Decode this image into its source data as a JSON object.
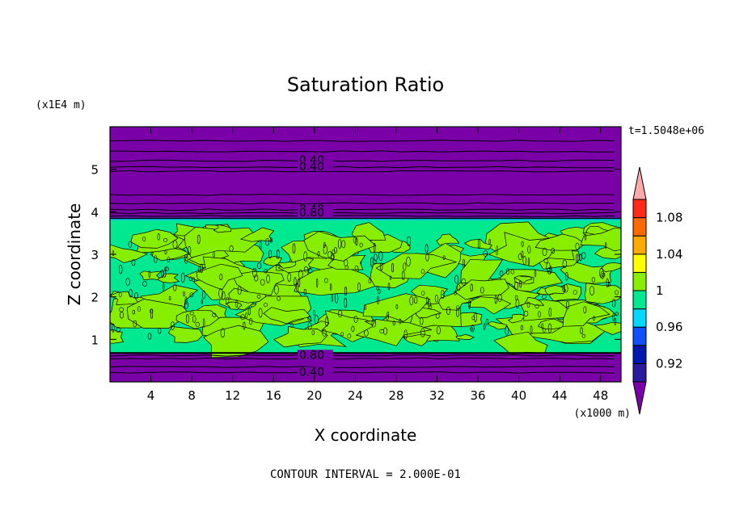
{
  "chart_data": {
    "type": "heatmap",
    "title": "Saturation Ratio",
    "xlabel": "X coordinate",
    "ylabel": "Z coordinate",
    "x_unit": "(x1000 m)",
    "y_unit": "(x1E4 m)",
    "time_label": "t=1.5048e+06",
    "footer": "CONTOUR INTERVAL = 2.000E-01",
    "xlim": [
      0,
      50
    ],
    "ylim": [
      0,
      6
    ],
    "x_ticks": [
      "4",
      "8",
      "12",
      "16",
      "20",
      "24",
      "28",
      "32",
      "36",
      "40",
      "44",
      "48"
    ],
    "x_tick_values": [
      4,
      8,
      12,
      16,
      20,
      24,
      28,
      32,
      36,
      40,
      44,
      48
    ],
    "y_ticks": [
      "1",
      "2",
      "3",
      "4",
      "5"
    ],
    "y_tick_values": [
      1,
      2,
      3,
      4,
      5
    ],
    "colorbar": {
      "levels": [
        "0.92",
        "0.96",
        "1",
        "1.04",
        "1.08"
      ],
      "colors": [
        "#7a00a8",
        "#2a1aa0",
        "#0018b0",
        "#1050ff",
        "#00d8ff",
        "#00e890",
        "#88ee00",
        "#ffff00",
        "#ffaa00",
        "#ff6a00",
        "#ff2a1a",
        "#ffaaaa"
      ]
    },
    "contour_labels": [
      {
        "text": "0.40",
        "x": 18.5,
        "z": 5.2
      },
      {
        "text": "0.40",
        "x": 18.5,
        "z": 5.05
      },
      {
        "text": "0.40",
        "x": 18.5,
        "z": 4.05
      },
      {
        "text": "0.80",
        "x": 18.5,
        "z": 3.97
      },
      {
        "text": "0.80",
        "x": 18.5,
        "z": 0.62
      },
      {
        "text": "0.40",
        "x": 18.5,
        "z": 0.22
      }
    ]
  }
}
